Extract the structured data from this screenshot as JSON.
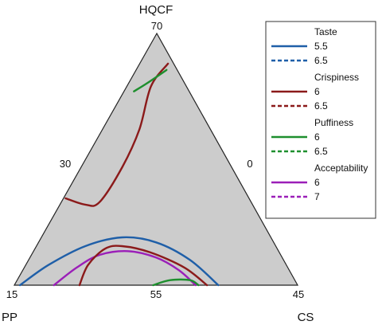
{
  "chart_data": {
    "type": "ternary-contour",
    "axes": {
      "top": {
        "name": "HQCF",
        "tick": "70"
      },
      "left": {
        "name": "PP",
        "tick": "15",
        "side_tick": "30"
      },
      "right": {
        "name": "CS",
        "tick": "45",
        "side_tick": "0"
      },
      "bottom_mid_tick": "55"
    },
    "legend": {
      "position": "right",
      "groups": [
        {
          "title": "Taste",
          "color": "#1f5fa8",
          "items": [
            {
              "label": "5.5",
              "style": "solid"
            },
            {
              "label": "6.5",
              "style": "dashed"
            }
          ]
        },
        {
          "title": "Crispiness",
          "color": "#8b1a1a",
          "items": [
            {
              "label": "6",
              "style": "solid"
            },
            {
              "label": "6.5",
              "style": "dashed"
            }
          ]
        },
        {
          "title": "Puffiness",
          "color": "#1e8f2e",
          "items": [
            {
              "label": "6",
              "style": "solid"
            },
            {
              "label": "6.5",
              "style": "dashed"
            }
          ]
        },
        {
          "title": "Acceptability",
          "color": "#9b1fb8",
          "items": [
            {
              "label": "6",
              "style": "solid"
            },
            {
              "label": "7",
              "style": "dashed"
            }
          ]
        }
      ]
    },
    "series": [
      {
        "name": "Taste 5.5",
        "color": "#1f5fa8",
        "dash": false,
        "points": [
          [
            0.02,
            0.0
          ],
          [
            0.12,
            0.08
          ],
          [
            0.25,
            0.155
          ],
          [
            0.38,
            0.19
          ],
          [
            0.5,
            0.17
          ],
          [
            0.62,
            0.1
          ],
          [
            0.72,
            0.0
          ]
        ]
      },
      {
        "name": "Acceptability 6",
        "color": "#9b1fb8",
        "dash": false,
        "points": [
          [
            0.14,
            0.0
          ],
          [
            0.22,
            0.07
          ],
          [
            0.3,
            0.12
          ],
          [
            0.4,
            0.135
          ],
          [
            0.5,
            0.11
          ],
          [
            0.58,
            0.06
          ],
          [
            0.64,
            0.0
          ]
        ]
      },
      {
        "name": "Crispiness 6 (lower)",
        "color": "#8b1a1a",
        "dash": false,
        "points": [
          [
            0.23,
            0.0
          ],
          [
            0.26,
            0.08
          ],
          [
            0.32,
            0.145
          ],
          [
            0.38,
            0.155
          ],
          [
            0.48,
            0.13
          ],
          [
            0.6,
            0.07
          ],
          [
            0.68,
            0.0
          ]
        ]
      },
      {
        "name": "Crispiness 6 (upper)",
        "color": "#8b1a1a",
        "dash": false,
        "points": [
          [
            0.18,
            0.345
          ],
          [
            0.25,
            0.32
          ],
          [
            0.3,
            0.33
          ],
          [
            0.38,
            0.47
          ],
          [
            0.44,
            0.62
          ],
          [
            0.48,
            0.79
          ],
          [
            0.54,
            0.88
          ]
        ]
      },
      {
        "name": "Puffiness 6 (bottom)",
        "color": "#1e8f2e",
        "dash": false,
        "points": [
          [
            0.49,
            0.0
          ],
          [
            0.55,
            0.02
          ],
          [
            0.62,
            0.02
          ],
          [
            0.65,
            0.0
          ]
        ]
      },
      {
        "name": "Puffiness 6 (top)",
        "color": "#1e8f2e",
        "dash": false,
        "points": [
          [
            0.42,
            0.77
          ],
          [
            0.47,
            0.805
          ],
          [
            0.535,
            0.855
          ]
        ]
      }
    ]
  }
}
